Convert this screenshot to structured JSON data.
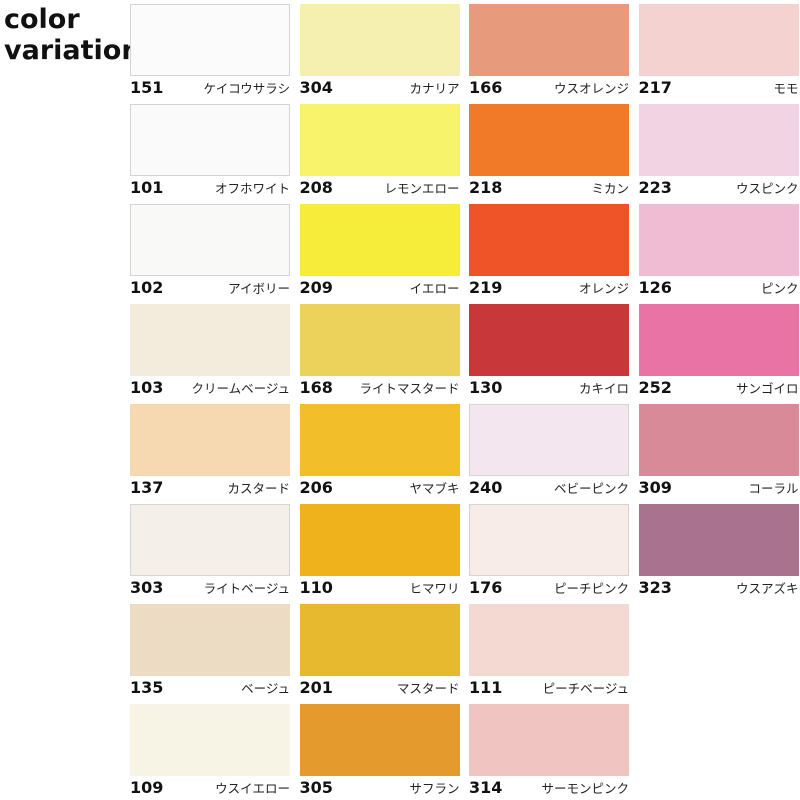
{
  "title": "color\nvariation",
  "columns": [
    [
      {
        "code": "151",
        "name": "ケイコウサラシ",
        "color": "#fbfbfb"
      },
      {
        "code": "101",
        "name": "オフホワイト",
        "color": "#fafafa"
      },
      {
        "code": "102",
        "name": "アイボリー",
        "color": "#f9f9f7"
      },
      {
        "code": "103",
        "name": "クリームベージュ",
        "color": "#f3ebdc"
      },
      {
        "code": "137",
        "name": "カスタード",
        "color": "#f6d9b0"
      },
      {
        "code": "303",
        "name": "ライトベージュ",
        "color": "#f5efe9"
      },
      {
        "code": "135",
        "name": "ベージュ",
        "color": "#ecdcc4"
      },
      {
        "code": "109",
        "name": "ウスイエロー",
        "color": "#f7f4e6"
      }
    ],
    [
      {
        "code": "304",
        "name": "カナリア",
        "color": "#f5efb0"
      },
      {
        "code": "208",
        "name": "レモンエロー",
        "color": "#f7f36a"
      },
      {
        "code": "209",
        "name": "イエロー",
        "color": "#f6ec3a"
      },
      {
        "code": "168",
        "name": "ライトマスタード",
        "color": "#ecd25a"
      },
      {
        "code": "206",
        "name": "ヤマブキ",
        "color": "#f2be2a"
      },
      {
        "code": "110",
        "name": "ヒマワリ",
        "color": "#efb21c"
      },
      {
        "code": "201",
        "name": "マスタード",
        "color": "#e6b92e"
      },
      {
        "code": "305",
        "name": "サフラン",
        "color": "#e49a2c"
      }
    ],
    [
      {
        "code": "166",
        "name": "ウスオレンジ",
        "color": "#e89a7d"
      },
      {
        "code": "218",
        "name": "ミカン",
        "color": "#f07a27"
      },
      {
        "code": "219",
        "name": "オレンジ",
        "color": "#ef5428"
      },
      {
        "code": "130",
        "name": "カキイロ",
        "color": "#c8373a"
      },
      {
        "code": "240",
        "name": "ベビーピンク",
        "color": "#f3e6ee"
      },
      {
        "code": "176",
        "name": "ピーチピンク",
        "color": "#f8ece8"
      },
      {
        "code": "111",
        "name": "ピーチベージュ",
        "color": "#f4d8d2"
      },
      {
        "code": "314",
        "name": "サーモンピンク",
        "color": "#f0c4c0"
      }
    ],
    [
      {
        "code": "217",
        "name": "モモ",
        "color": "#f3d2cf"
      },
      {
        "code": "223",
        "name": "ウスピンク",
        "color": "#f2d3e4"
      },
      {
        "code": "126",
        "name": "ピンク",
        "color": "#efbcd3"
      },
      {
        "code": "252",
        "name": "サンゴイロ",
        "color": "#e873a4"
      },
      {
        "code": "309",
        "name": "コーラル",
        "color": "#d98a98"
      },
      {
        "code": "323",
        "name": "ウスアズキ",
        "color": "#a9728e"
      }
    ]
  ]
}
